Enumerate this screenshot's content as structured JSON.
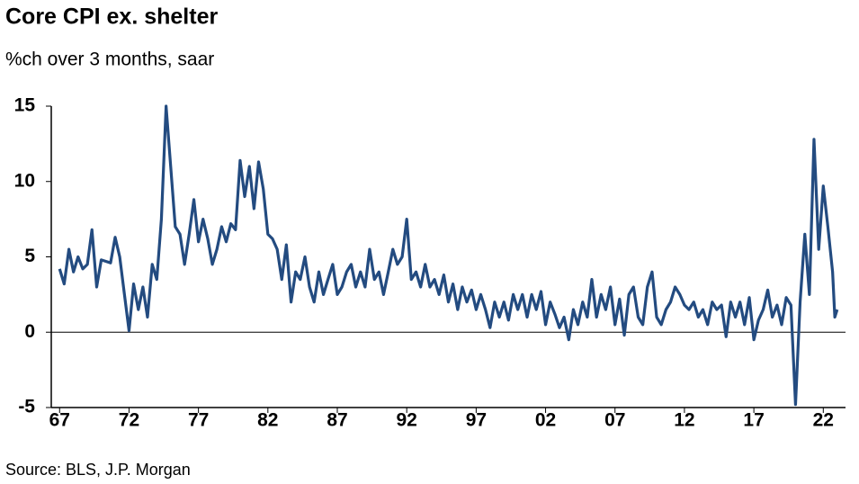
{
  "chart_data": {
    "type": "line",
    "title": "Core CPI ex. shelter",
    "subtitle": "%ch over 3 months, saar",
    "source": "Source: BLS, J.P. Morgan",
    "xlim": [
      1966.4,
      2023.6
    ],
    "xticks": [
      {
        "value": 1967,
        "label": "67"
      },
      {
        "value": 1972,
        "label": "72"
      },
      {
        "value": 1977,
        "label": "77"
      },
      {
        "value": 1982,
        "label": "82"
      },
      {
        "value": 1987,
        "label": "87"
      },
      {
        "value": 1992,
        "label": "92"
      },
      {
        "value": 1997,
        "label": "97"
      },
      {
        "value": 2002,
        "label": "02"
      },
      {
        "value": 2007,
        "label": "07"
      },
      {
        "value": 2012,
        "label": "12"
      },
      {
        "value": 2017,
        "label": "17"
      },
      {
        "value": 2022,
        "label": "22"
      }
    ],
    "ylim": [
      -5,
      15
    ],
    "yticks": [
      -5,
      0,
      5,
      10,
      15
    ],
    "x": [
      1967,
      1967.33,
      1967.67,
      1968,
      1968.33,
      1968.67,
      1969,
      1969.33,
      1969.67,
      1970,
      1970.33,
      1970.67,
      1971,
      1971.33,
      1971.67,
      1972,
      1972.33,
      1972.67,
      1973,
      1973.33,
      1973.67,
      1974,
      1974.33,
      1974.67,
      1975,
      1975.33,
      1975.67,
      1976,
      1976.33,
      1976.67,
      1977,
      1977.33,
      1977.67,
      1978,
      1978.33,
      1978.67,
      1979,
      1979.33,
      1979.67,
      1980,
      1980.33,
      1980.67,
      1981,
      1981.33,
      1981.67,
      1982,
      1982.33,
      1982.67,
      1983,
      1983.33,
      1983.67,
      1984,
      1984.33,
      1984.67,
      1985,
      1985.33,
      1985.67,
      1986,
      1986.33,
      1986.67,
      1987,
      1987.33,
      1987.67,
      1988,
      1988.33,
      1988.67,
      1989,
      1989.33,
      1989.67,
      1990,
      1990.33,
      1990.67,
      1991,
      1991.33,
      1991.67,
      1992,
      1992.33,
      1992.67,
      1993,
      1993.33,
      1993.67,
      1994,
      1994.33,
      1994.67,
      1995,
      1995.33,
      1995.67,
      1996,
      1996.33,
      1996.67,
      1997,
      1997.33,
      1997.67,
      1998,
      1998.33,
      1998.67,
      1999,
      1999.33,
      1999.67,
      2000,
      2000.33,
      2000.67,
      2001,
      2001.33,
      2001.67,
      2002,
      2002.33,
      2002.67,
      2003,
      2003.33,
      2003.67,
      2004,
      2004.33,
      2004.67,
      2005,
      2005.33,
      2005.67,
      2006,
      2006.33,
      2006.67,
      2007,
      2007.33,
      2007.67,
      2008,
      2008.33,
      2008.67,
      2009,
      2009.33,
      2009.67,
      2010,
      2010.33,
      2010.67,
      2011,
      2011.33,
      2011.67,
      2012,
      2012.33,
      2012.67,
      2013,
      2013.33,
      2013.67,
      2014,
      2014.33,
      2014.67,
      2015,
      2015.33,
      2015.67,
      2016,
      2016.33,
      2016.67,
      2017,
      2017.33,
      2017.67,
      2018,
      2018.33,
      2018.67,
      2019,
      2019.33,
      2019.67,
      2020,
      2020.33,
      2020.67,
      2021,
      2021.33,
      2021.67,
      2022,
      2022.33,
      2022.67,
      2022.83,
      2023
    ],
    "series": [
      {
        "name": "Core CPI ex. shelter",
        "color": "#234b80",
        "values": [
          4.2,
          3.2,
          5.5,
          4.0,
          5.0,
          4.2,
          4.5,
          6.8,
          3.0,
          4.8,
          4.7,
          4.6,
          6.3,
          5.0,
          2.5,
          0.1,
          3.2,
          1.5,
          3.0,
          1.0,
          4.5,
          3.5,
          7.5,
          15.0,
          11.0,
          7.0,
          6.5,
          4.5,
          6.5,
          8.8,
          6.0,
          7.5,
          6.2,
          4.5,
          5.5,
          7.0,
          6.0,
          7.2,
          6.8,
          11.4,
          9.0,
          11.0,
          8.2,
          11.3,
          9.5,
          6.5,
          6.2,
          5.5,
          3.5,
          5.8,
          2.0,
          4.0,
          3.5,
          5.0,
          3.0,
          2.0,
          4.0,
          2.5,
          3.5,
          4.5,
          2.5,
          3.0,
          4.0,
          4.5,
          3.0,
          4.0,
          3.0,
          5.5,
          3.5,
          4.0,
          2.5,
          4.0,
          5.5,
          4.5,
          5.0,
          7.5,
          3.5,
          4.0,
          3.0,
          4.5,
          3.0,
          3.5,
          2.5,
          3.8,
          2.0,
          3.2,
          1.5,
          3.0,
          2.0,
          2.8,
          1.5,
          2.5,
          1.5,
          0.3,
          2.0,
          1.0,
          2.0,
          0.8,
          2.5,
          1.5,
          2.5,
          1.0,
          2.5,
          1.5,
          2.7,
          0.5,
          2.0,
          1.2,
          0.3,
          1.0,
          -0.5,
          1.5,
          0.5,
          2.0,
          1.0,
          3.5,
          1.0,
          2.5,
          1.5,
          3.0,
          0.5,
          2.2,
          -0.2,
          2.5,
          3.0,
          1.0,
          0.5,
          3.0,
          4.0,
          1.0,
          0.5,
          1.5,
          2.0,
          3.0,
          2.5,
          1.8,
          1.5,
          2.0,
          1.0,
          1.5,
          0.5,
          2.0,
          1.5,
          1.8,
          -0.3,
          2.0,
          1.0,
          2.0,
          0.5,
          2.3,
          -0.5,
          0.8,
          1.5,
          2.8,
          1.0,
          1.8,
          0.5,
          2.3,
          1.8,
          -4.8,
          2.0,
          6.5,
          2.5,
          12.8,
          5.5,
          9.7,
          7.0,
          4.0,
          1.0,
          1.5
        ]
      }
    ]
  }
}
